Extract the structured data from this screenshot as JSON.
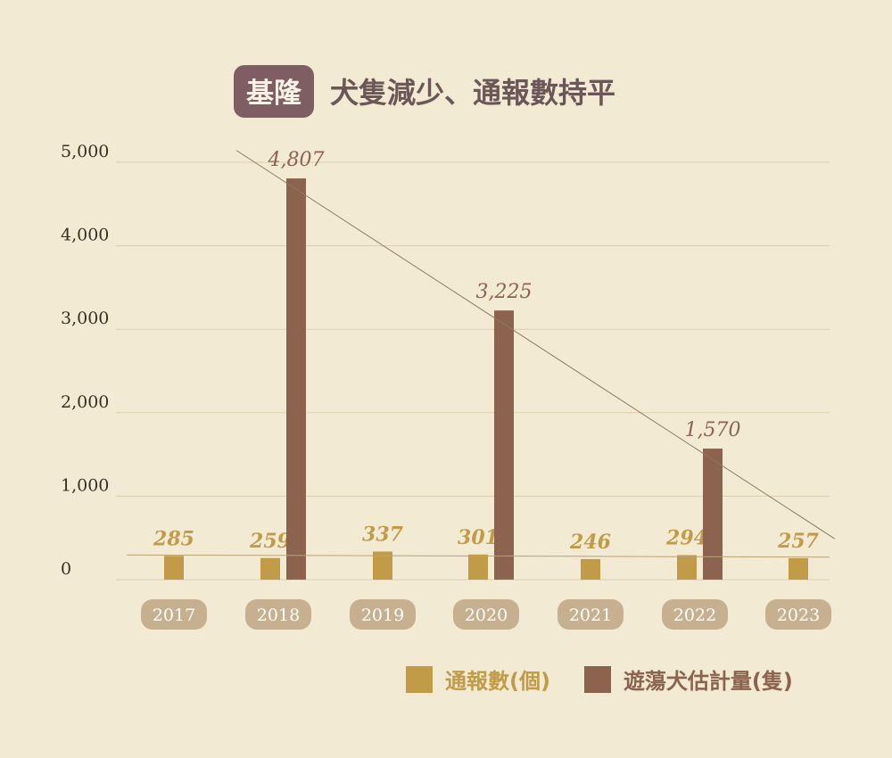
{
  "title": {
    "badge": "基隆",
    "text": "犬隻減少、通報數持平"
  },
  "colors": {
    "reports": "#c19b48",
    "dogs": "#8b634e",
    "background": "#f3ead4",
    "grid": "#dccfae"
  },
  "chart_data": {
    "type": "bar",
    "categories": [
      "2017",
      "2018",
      "2019",
      "2020",
      "2021",
      "2022",
      "2023"
    ],
    "series": [
      {
        "name": "通報數(個)",
        "values": [
          285,
          259,
          337,
          301,
          246,
          294,
          257
        ],
        "labels": [
          "285",
          "259",
          "337",
          "301",
          "246",
          "294",
          "257"
        ]
      },
      {
        "name": "遊蕩犬估計量(隻)",
        "values": [
          null,
          4807,
          null,
          3225,
          null,
          1570,
          null
        ],
        "labels": [
          "",
          "4,807",
          "",
          "3,225",
          "",
          "1,570",
          ""
        ]
      }
    ],
    "ylim": [
      0,
      5000
    ],
    "yticks": [
      0,
      1000,
      2000,
      3000,
      4000,
      5000
    ],
    "ytick_labels": [
      "0",
      "1,000",
      "2,000",
      "3,000",
      "4,000",
      "5,000"
    ],
    "grid": true,
    "legend": "bottom-right",
    "trendlines": true
  }
}
